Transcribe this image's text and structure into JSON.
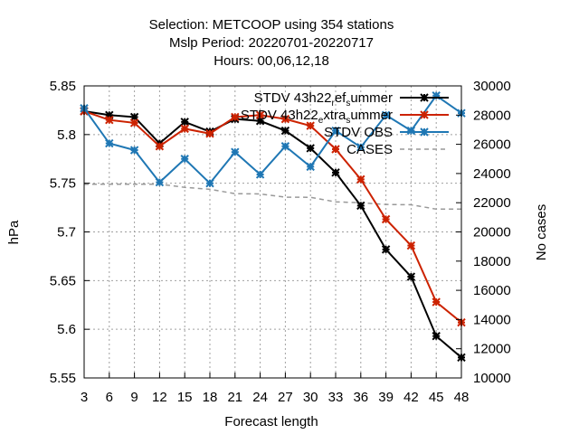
{
  "chart_data": {
    "type": "line",
    "title_lines": [
      "Selection: METCOOP using   354 stations",
      "Mslp   Period: 20220701-20220717",
      "Hours:  00,06,12,18"
    ],
    "xlabel": "Forecast length",
    "ylabel": "hPa",
    "y2label": "No cases",
    "x": [
      3,
      6,
      9,
      12,
      15,
      18,
      21,
      24,
      27,
      30,
      33,
      36,
      39,
      42,
      45,
      48
    ],
    "xlim": [
      3,
      48
    ],
    "ylim": [
      5.55,
      5.85
    ],
    "y2lim": [
      10000,
      30000
    ],
    "yticks": [
      "5.55",
      "5.6",
      "5.65",
      "5.7",
      "5.75",
      "5.8",
      "5.85"
    ],
    "y2ticks": [
      "10000",
      "12000",
      "14000",
      "16000",
      "18000",
      "20000",
      "22000",
      "24000",
      "26000",
      "28000",
      "30000"
    ],
    "xticks": [
      "3",
      "6",
      "9",
      "12",
      "15",
      "18",
      "21",
      "24",
      "27",
      "30",
      "33",
      "36",
      "39",
      "42",
      "45",
      "48"
    ],
    "grid": true,
    "legend_position": "top-right",
    "series": [
      {
        "legend": {
          "main": "STDV 43h22",
          "sub1": "r",
          "mid": "ef",
          "sub2": "s",
          "end": "ummer"
        },
        "color": "#000000",
        "axis": "y",
        "style": "solid",
        "values": [
          5.824,
          5.82,
          5.818,
          5.791,
          5.813,
          5.803,
          5.816,
          5.814,
          5.804,
          5.786,
          5.761,
          5.727,
          5.682,
          5.654,
          5.593,
          5.571
        ]
      },
      {
        "legend": {
          "main": "STDV 43h22",
          "sub1": "e",
          "mid": "xtra",
          "sub2": "s",
          "end": "ummer"
        },
        "color": "#cc2200",
        "axis": "y",
        "style": "solid",
        "values": [
          5.824,
          5.815,
          5.812,
          5.788,
          5.806,
          5.801,
          5.818,
          5.82,
          5.816,
          5.809,
          5.785,
          5.754,
          5.713,
          5.686,
          5.628,
          5.607
        ]
      },
      {
        "legend": {
          "main": "STDV OBS"
        },
        "color": "#1f77b4",
        "axis": "y",
        "style": "solid",
        "values": [
          5.827,
          5.791,
          5.784,
          5.751,
          5.775,
          5.75,
          5.782,
          5.759,
          5.788,
          5.767,
          5.804,
          5.787,
          5.82,
          5.804,
          5.84,
          5.822
        ]
      },
      {
        "legend": {
          "main": "CASES"
        },
        "color": "#999999",
        "axis": "y2",
        "style": "dashed",
        "values": [
          23270,
          23270,
          23270,
          23270,
          23050,
          22920,
          22620,
          22600,
          22380,
          22370,
          22060,
          22000,
          21880,
          21860,
          21560,
          21560
        ]
      }
    ]
  }
}
